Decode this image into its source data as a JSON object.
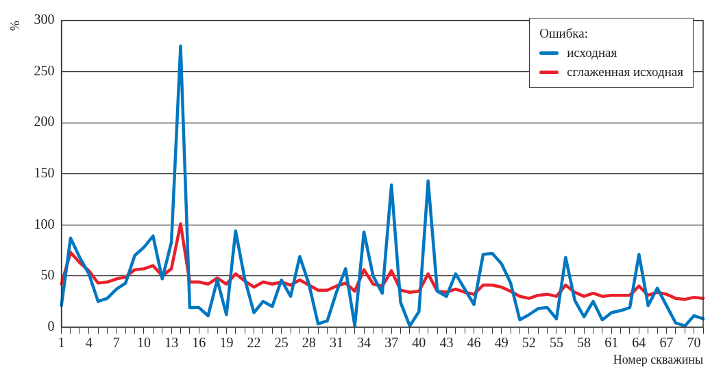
{
  "chart_data": {
    "type": "line",
    "xlabel": "Номер скважины",
    "ylabel": "%",
    "legend_title": "Ошибка:",
    "categories": [
      "1",
      null,
      null,
      "4",
      null,
      null,
      "7",
      null,
      null,
      "10",
      null,
      null,
      "13",
      null,
      null,
      "16",
      null,
      null,
      "19",
      null,
      null,
      "22",
      null,
      null,
      "25",
      null,
      null,
      "28",
      null,
      null,
      "31",
      null,
      null,
      "34",
      null,
      null,
      "37",
      null,
      null,
      "40",
      null,
      null,
      "43",
      null,
      null,
      "46",
      null,
      null,
      "49",
      null,
      null,
      "52",
      null,
      null,
      "55",
      null,
      null,
      "58",
      null,
      null,
      "61",
      null,
      null,
      "64",
      null,
      null,
      "67",
      null,
      null,
      "70",
      null
    ],
    "series": [
      {
        "name": "исходная",
        "color": "#0077c0",
        "values": [
          21,
          87,
          68,
          52,
          25,
          28,
          37,
          43,
          70,
          78,
          89,
          47,
          83,
          275,
          19,
          19,
          11,
          46,
          12,
          94,
          47,
          14,
          25,
          20,
          46,
          30,
          69,
          42,
          3,
          6,
          34,
          57,
          1,
          93,
          50,
          33,
          139,
          24,
          1,
          15,
          143,
          35,
          30,
          52,
          37,
          22,
          71,
          72,
          62,
          43,
          7,
          12,
          18,
          19,
          8,
          68,
          26,
          10,
          25,
          7,
          14,
          16,
          19,
          71,
          21,
          38,
          21,
          4,
          1,
          11,
          8
        ]
      },
      {
        "name": "сглаженная исходная",
        "color": "#e8202a",
        "values": [
          42,
          73,
          63,
          55,
          43,
          44,
          47,
          49,
          56,
          57,
          60,
          50,
          57,
          101,
          44,
          44,
          42,
          48,
          42,
          52,
          45,
          39,
          44,
          42,
          44,
          41,
          46,
          41,
          36,
          36,
          40,
          43,
          35,
          56,
          42,
          40,
          55,
          36,
          34,
          35,
          52,
          35,
          34,
          37,
          34,
          32,
          41,
          41,
          39,
          35,
          30,
          28,
          31,
          32,
          30,
          41,
          34,
          30,
          33,
          30,
          31,
          31,
          31,
          40,
          31,
          34,
          32,
          28,
          27,
          29,
          28
        ]
      }
    ],
    "ylim": [
      0,
      300
    ],
    "yticks": [
      0,
      50,
      100,
      150,
      200,
      250,
      300
    ],
    "grid": "y",
    "legend": "top right",
    "marker": "none",
    "line_style": "solid"
  }
}
